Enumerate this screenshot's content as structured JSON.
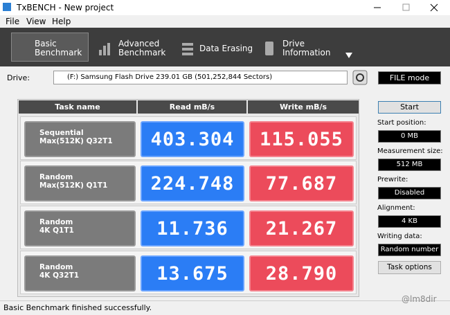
{
  "window": {
    "title": "TxBENCH - New project"
  },
  "menu": [
    "File",
    "View",
    "Help"
  ],
  "tabs": [
    [
      "Basic",
      "Benchmark"
    ],
    [
      "Advanced",
      "Benchmark"
    ],
    [
      "Data Erasing"
    ],
    [
      "Drive",
      "Information"
    ]
  ],
  "drive": {
    "label": "Drive:",
    "value": "(F:) Samsung Flash Drive  239.01 GB (501,252,844 Sectors)"
  },
  "file_mode": "FILE mode",
  "table": {
    "header": [
      "Task name",
      "Read mB/s",
      "Write mB/s"
    ],
    "rows": [
      {
        "task": [
          "Sequential",
          "Max(512K) Q32T1"
        ],
        "read": "403.304",
        "write": "115.055"
      },
      {
        "task": [
          "Random",
          "Max(512K) Q1T1"
        ],
        "read": "224.748",
        "write": "77.687"
      },
      {
        "task": [
          "Random",
          "4K Q1T1"
        ],
        "read": "11.736",
        "write": "21.267"
      },
      {
        "task": [
          "Random",
          "4K Q32T1"
        ],
        "read": "13.675",
        "write": "28.790"
      }
    ]
  },
  "side": {
    "start": "Start",
    "fields": [
      {
        "label": "Start position:",
        "value": "0 MB"
      },
      {
        "label": "Measurement size:",
        "value": "512 MB"
      },
      {
        "label": "Prewrite:",
        "value": "Disabled"
      },
      {
        "label": "Alignment:",
        "value": "4 KB"
      },
      {
        "label": "Writing data:",
        "value": "Random number"
      }
    ],
    "task_options": "Task options"
  },
  "status": "Basic Benchmark finished successfully.",
  "watermark": "@lm8dir"
}
